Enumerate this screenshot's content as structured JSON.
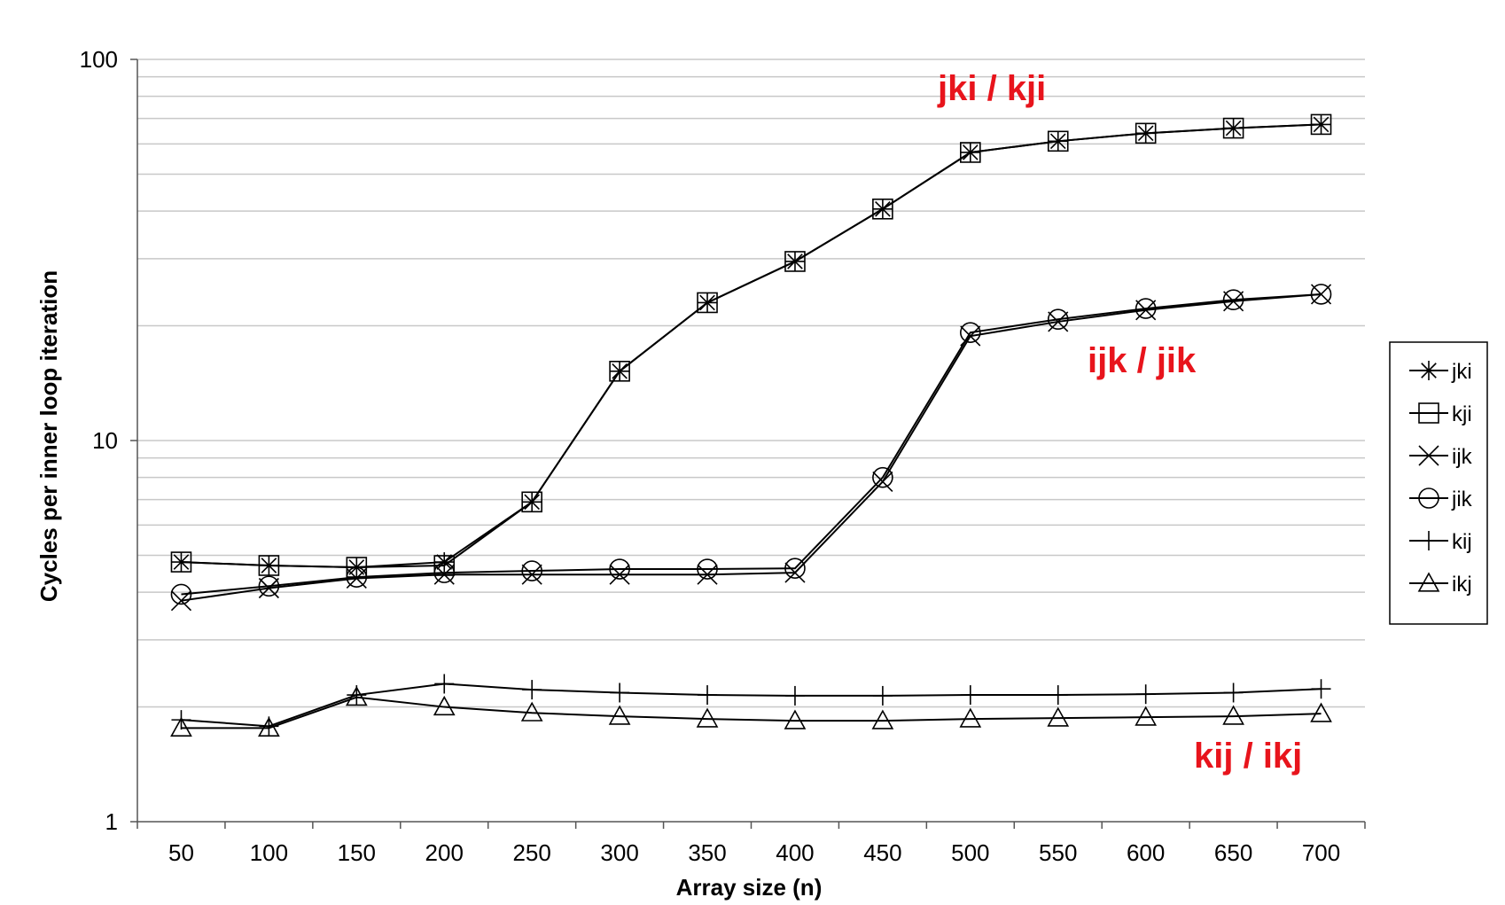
{
  "chart_data": {
    "type": "line",
    "xlabel": "Array size (n)",
    "ylabel": "Cycles per inner loop iteration",
    "yscale": "log",
    "ylim": [
      1,
      100
    ],
    "yticks": [
      "1",
      "10",
      "100"
    ],
    "categories": [
      "50",
      "100",
      "150",
      "200",
      "250",
      "300",
      "350",
      "400",
      "450",
      "500",
      "550",
      "600",
      "650",
      "700"
    ],
    "grid": "horizontal",
    "legend_position": "right",
    "series": [
      {
        "name": "jki",
        "marker": "asterisk",
        "values": [
          4.8,
          4.7,
          4.65,
          4.8,
          6.9,
          15.2,
          23,
          29.5,
          40.5,
          57,
          61,
          64,
          66,
          67.5
        ]
      },
      {
        "name": "kji",
        "marker": "square",
        "values": [
          4.8,
          4.7,
          4.65,
          4.7,
          6.9,
          15.2,
          23,
          29.5,
          40.5,
          57,
          61,
          64,
          66,
          67.5
        ]
      },
      {
        "name": "ijk",
        "marker": "x",
        "values": [
          3.8,
          4.1,
          4.35,
          4.45,
          4.45,
          4.45,
          4.45,
          4.5,
          7.8,
          18.8,
          20.5,
          22,
          23.2,
          24.2
        ]
      },
      {
        "name": "jik",
        "marker": "circle",
        "values": [
          3.95,
          4.15,
          4.38,
          4.5,
          4.55,
          4.6,
          4.6,
          4.62,
          8.0,
          19.2,
          20.8,
          22.2,
          23.4,
          24.2
        ]
      },
      {
        "name": "kij",
        "marker": "plus",
        "values": [
          1.85,
          1.78,
          2.15,
          2.3,
          2.22,
          2.18,
          2.15,
          2.14,
          2.14,
          2.15,
          2.15,
          2.16,
          2.18,
          2.23
        ]
      },
      {
        "name": "ikj",
        "marker": "triangle",
        "values": [
          1.76,
          1.76,
          2.12,
          2.0,
          1.93,
          1.89,
          1.86,
          1.84,
          1.84,
          1.86,
          1.87,
          1.88,
          1.89,
          1.92
        ]
      }
    ],
    "annotations": [
      "jki / kji",
      "ijk / jik",
      "kij / ikj"
    ]
  }
}
